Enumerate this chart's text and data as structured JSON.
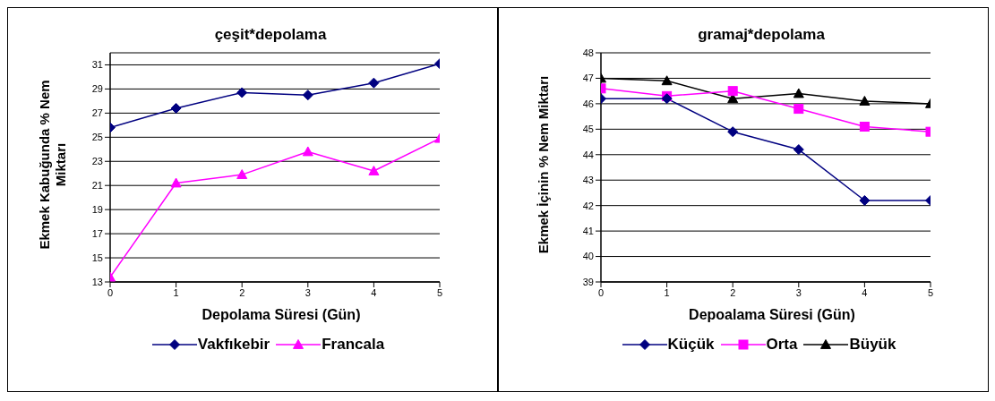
{
  "chart_data": [
    {
      "type": "line",
      "title": "çeşit*depolama",
      "xlabel": "Depolama Süresi (Gün)",
      "ylabel": "Ekmek Kabuğunda % Nem Miktarı",
      "x": [
        0,
        1,
        2,
        3,
        4,
        5
      ],
      "xlim": [
        0,
        5
      ],
      "xticks": [
        0,
        1,
        2,
        3,
        4,
        5
      ],
      "ylim": [
        13,
        32
      ],
      "yticks": [
        13,
        15,
        17,
        19,
        21,
        23,
        25,
        27,
        29,
        31
      ],
      "grid": "y",
      "legend": "bottom",
      "series": [
        {
          "name": "Vakfıkebir",
          "color": "#000080",
          "marker": "diamond",
          "values": [
            25.8,
            27.4,
            28.7,
            28.5,
            29.5,
            31.1
          ]
        },
        {
          "name": "Francala",
          "color": "#ff00ff",
          "marker": "triangle",
          "values": [
            13.4,
            21.2,
            21.9,
            23.8,
            22.2,
            24.9
          ]
        }
      ]
    },
    {
      "type": "line",
      "title": "gramaj*depolama",
      "xlabel": "Depoalama Süresi (Gün)",
      "ylabel": "Ekmek İçinin % Nem Miktarı",
      "x": [
        0,
        1,
        2,
        3,
        4,
        5
      ],
      "xlim": [
        0,
        5
      ],
      "xticks": [
        0,
        1,
        2,
        3,
        4,
        5
      ],
      "ylim": [
        39,
        48
      ],
      "yticks": [
        39,
        40,
        41,
        42,
        43,
        44,
        45,
        46,
        47,
        48
      ],
      "grid": "y",
      "legend": "bottom",
      "series": [
        {
          "name": "Küçük",
          "color": "#000080",
          "marker": "diamond",
          "values": [
            46.2,
            46.2,
            44.9,
            44.2,
            42.2,
            42.2
          ]
        },
        {
          "name": "Orta",
          "color": "#ff00ff",
          "marker": "square",
          "values": [
            46.6,
            46.3,
            46.5,
            45.8,
            45.1,
            44.9
          ]
        },
        {
          "name": "Büyük",
          "color": "#000000",
          "marker": "triangle",
          "values": [
            47.0,
            46.9,
            46.2,
            46.4,
            46.1,
            46.0
          ]
        }
      ]
    }
  ]
}
